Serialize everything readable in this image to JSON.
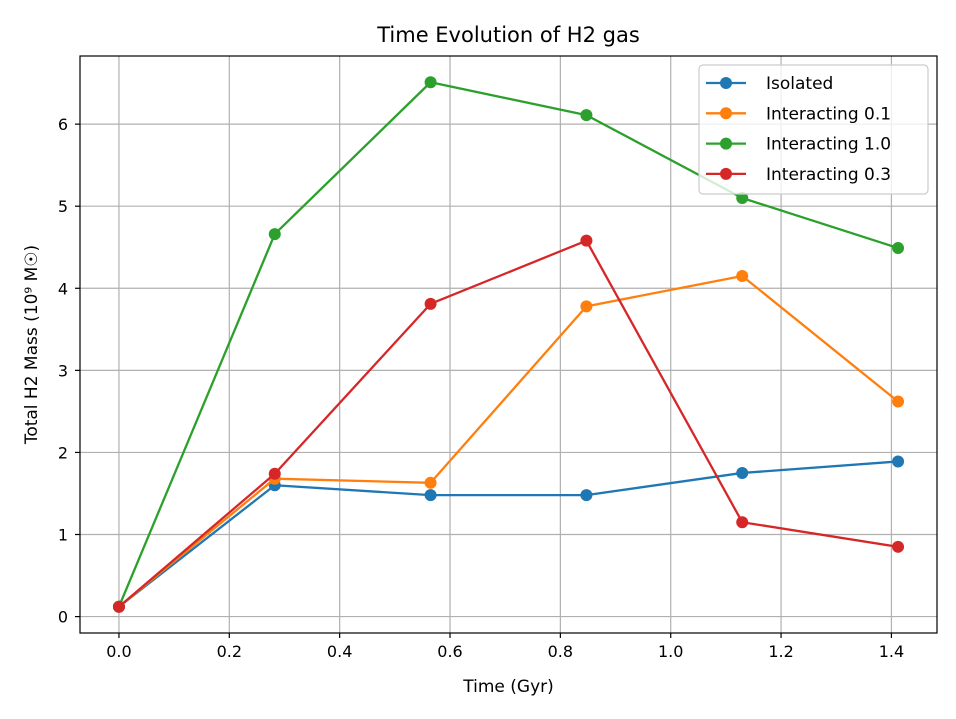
{
  "chart_data": {
    "type": "line",
    "title": "Time Evolution of H2 gas",
    "xlabel": "Time (Gyr)",
    "ylabel": "Total H2 Mass (10⁹ M☉)",
    "xlim": [
      -0.0706,
      1.4826
    ],
    "ylim": [
      -0.2,
      6.83
    ],
    "xticks": [
      0.0,
      0.2,
      0.4,
      0.6,
      0.8,
      1.0,
      1.2,
      1.4
    ],
    "xtick_labels": [
      "0.0",
      "0.2",
      "0.4",
      "0.6",
      "0.8",
      "1.0",
      "1.2",
      "1.4"
    ],
    "yticks": [
      0,
      1,
      2,
      3,
      4,
      5,
      6
    ],
    "ytick_labels": [
      "0",
      "1",
      "2",
      "3",
      "4",
      "5",
      "6"
    ],
    "grid": true,
    "legend_position": "top-right",
    "x": [
      0.0,
      0.2824,
      0.5648,
      0.8472,
      1.1296,
      1.412
    ],
    "series": [
      {
        "name": "Isolated",
        "color": "#1f77b4",
        "values": [
          0.12,
          1.6,
          1.48,
          1.48,
          1.75,
          1.89
        ]
      },
      {
        "name": "Interacting 0.1",
        "color": "#ff7f0e",
        "values": [
          0.12,
          1.68,
          1.63,
          3.78,
          4.15,
          2.62
        ]
      },
      {
        "name": "Interacting 1.0",
        "color": "#2ca02c",
        "values": [
          0.12,
          4.66,
          6.51,
          6.11,
          5.1,
          4.49
        ]
      },
      {
        "name": "Interacting 0.3",
        "color": "#d62728",
        "values": [
          0.12,
          1.74,
          3.81,
          4.58,
          1.15,
          0.85
        ]
      }
    ]
  }
}
